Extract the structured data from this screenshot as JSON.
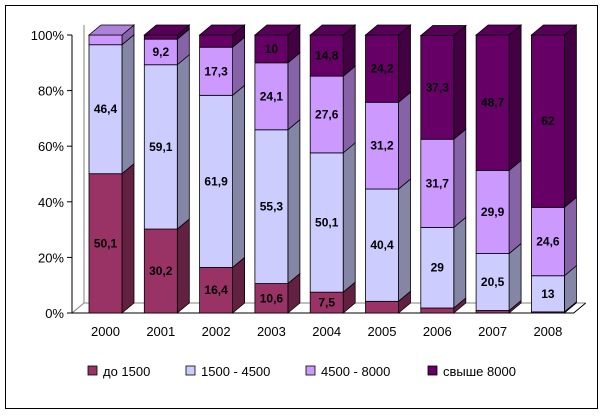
{
  "chart_data": {
    "type": "bar",
    "stacked": true,
    "three_d": true,
    "categories": [
      "2000",
      "2001",
      "2002",
      "2003",
      "2004",
      "2005",
      "2006",
      "2007",
      "2008"
    ],
    "series": [
      {
        "name": "до 1500",
        "color": "#993366",
        "values": [
          50.1,
          30.2,
          16.4,
          10.6,
          7.5,
          4.2,
          1.8,
          0.9,
          0.4
        ]
      },
      {
        "name": "1500 - 4500",
        "color": "#CCCCFF",
        "values": [
          46.4,
          59.1,
          61.9,
          55.3,
          50.1,
          40.4,
          29,
          20.5,
          13
        ]
      },
      {
        "name": "4500 - 8000",
        "color": "#CC99FF",
        "values": [
          3.5,
          9.2,
          17.3,
          24.1,
          27.6,
          31.2,
          31.7,
          29.9,
          24.6
        ]
      },
      {
        "name": "свыше 8000",
        "color": "#660066",
        "values": [
          0,
          1.5,
          4.4,
          10,
          14.8,
          24.2,
          37.3,
          48.7,
          62
        ]
      }
    ],
    "data_labels": [
      [
        "50,1",
        "30,2",
        "16,4",
        "10,6",
        "7,5",
        "",
        "",
        "",
        ""
      ],
      [
        "46,4",
        "59,1",
        "61,9",
        "55,3",
        "50,1",
        "40,4",
        "29",
        "20,5",
        "13"
      ],
      [
        "",
        "9,2",
        "17,3",
        "24,1",
        "27,6",
        "31,2",
        "31,7",
        "29,9",
        "24,6"
      ],
      [
        "",
        "",
        "",
        "10",
        "14,8",
        "24,2",
        "37,3",
        "48,7",
        "62"
      ]
    ],
    "y_ticks": [
      "0%",
      "20%",
      "40%",
      "60%",
      "80%",
      "100%"
    ],
    "ylim": [
      0,
      100
    ],
    "grid": false,
    "legend_position": "bottom"
  }
}
